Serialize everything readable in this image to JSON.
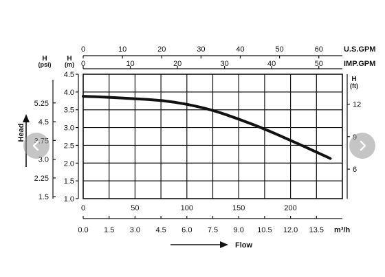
{
  "chart_data": {
    "type": "line",
    "xlabel": "Flow",
    "ylabel": "Head",
    "axes": {
      "bottom_primary": {
        "label": "",
        "ticks": [
          "0",
          "50",
          "100",
          "150",
          "200"
        ],
        "range": [
          0,
          250
        ]
      },
      "bottom_m3h": {
        "unit": "m³/h",
        "ticks": [
          "0.0",
          "1.5",
          "3.0",
          "4.5",
          "6.0",
          "7.5",
          "9.0",
          "10.5",
          "12.0",
          "13.5"
        ],
        "range": [
          0,
          15
        ]
      },
      "top_usgpm": {
        "unit": "U.S.GPM",
        "ticks": [
          "0",
          "10",
          "20",
          "30",
          "40",
          "50",
          "60"
        ],
        "range": [
          0,
          66
        ]
      },
      "top_impgpm": {
        "unit": "IMP.GPM",
        "ticks": [
          "0",
          "10",
          "20",
          "30",
          "40",
          "50"
        ],
        "range": [
          0,
          55
        ]
      },
      "left_m": {
        "unit_top": "H",
        "unit_bottom": "(m)",
        "ticks": [
          "1.0",
          "1.5",
          "2.0",
          "2.5",
          "3.0",
          "3.5",
          "4.0",
          "4.5"
        ],
        "range": [
          1.0,
          4.5
        ]
      },
      "left_psi": {
        "unit_top": "H",
        "unit_bottom": "(psi)",
        "ticks": [
          "1.5",
          "2.25",
          "3.0",
          "3.75",
          "4.5",
          "5.25"
        ],
        "range": [
          1.422,
          6.399
        ]
      },
      "right_ft": {
        "unit_top": "H",
        "unit_bottom": "(ft)",
        "ticks": [
          "6",
          "9",
          "12"
        ],
        "range": [
          3.28,
          14.76
        ]
      }
    },
    "series": [
      {
        "x_unit": "m³/h",
        "x": [
          0,
          1.5,
          3.0,
          4.5,
          6.0,
          7.5,
          9.0,
          10.5,
          12.0,
          13.5,
          14.3
        ],
        "y": [
          3.88,
          3.85,
          3.81,
          3.77,
          3.66,
          3.49,
          3.24,
          2.96,
          2.64,
          2.31,
          2.13
        ]
      }
    ],
    "grid": true
  },
  "icons": {
    "prev": "chevron-left-icon",
    "next": "chevron-right-icon"
  }
}
